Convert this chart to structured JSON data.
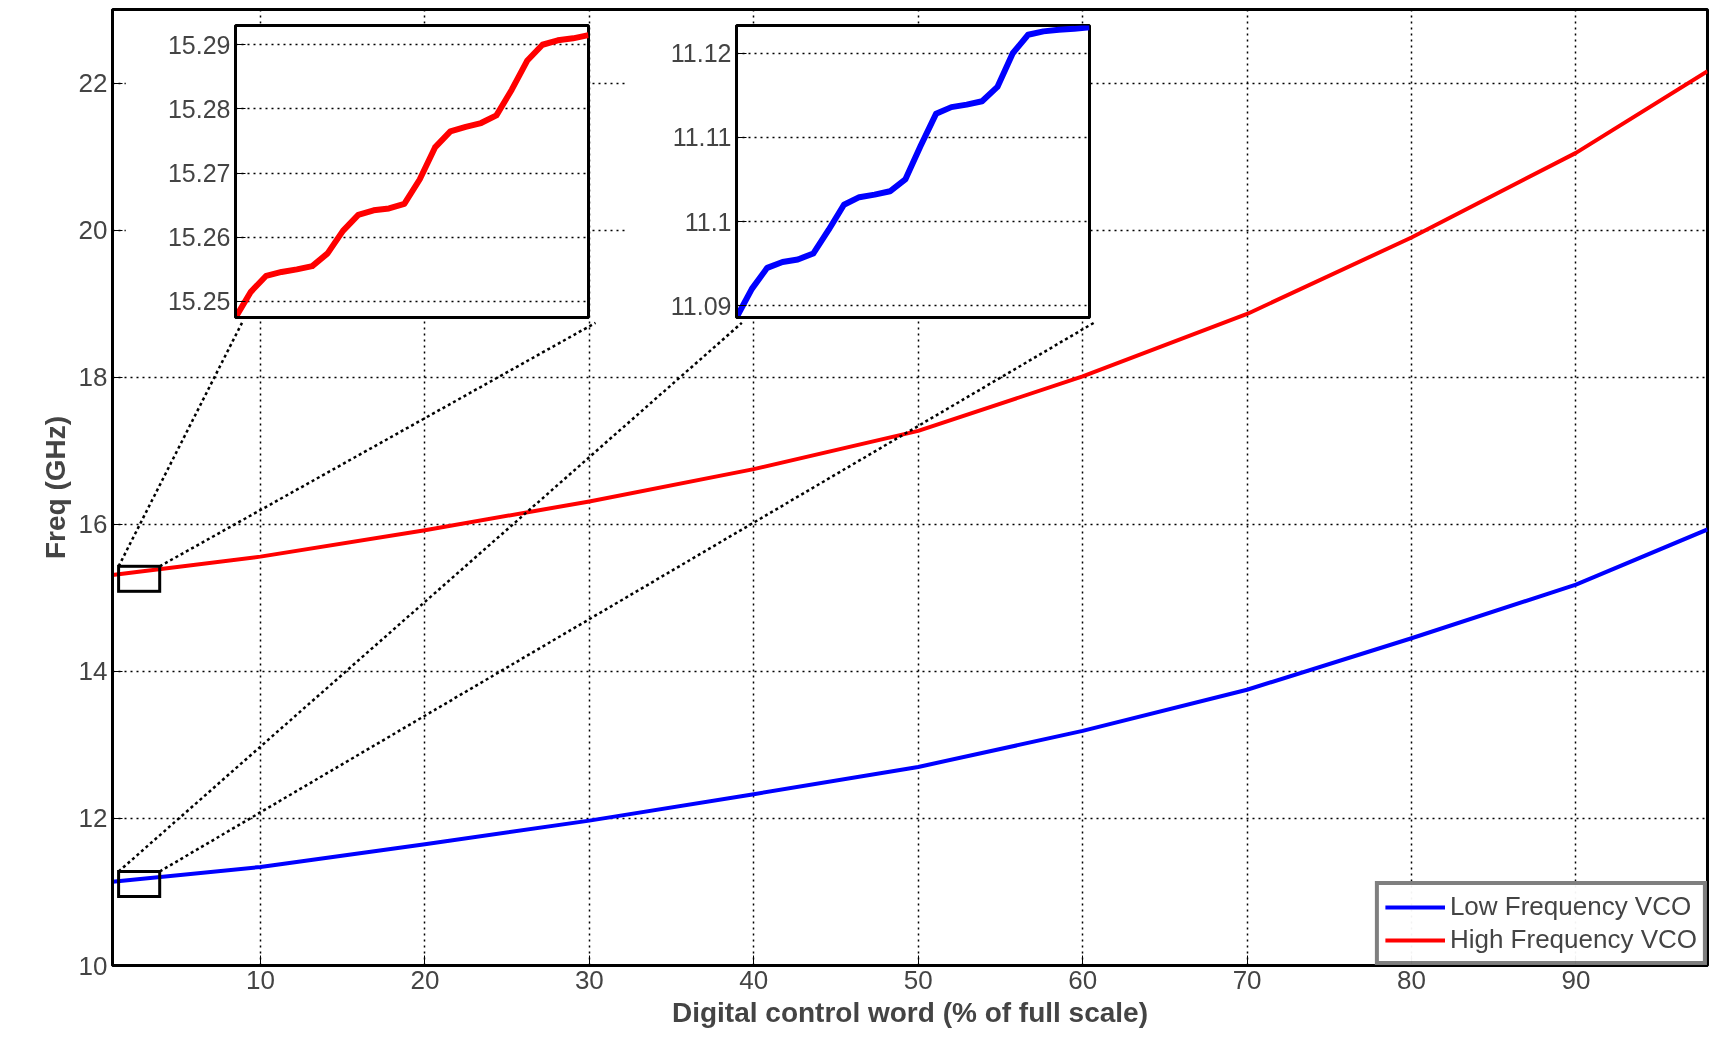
{
  "chart_data": [
    {
      "type": "line",
      "xlabel": "Digital control word (% of full scale)",
      "ylabel": "Freq (GHz)",
      "x": [
        1,
        10,
        20,
        30,
        40,
        50,
        60,
        70,
        80,
        90,
        98
      ],
      "xlim": [
        1,
        98
      ],
      "ylim": [
        10,
        23
      ],
      "xticks": [
        10,
        20,
        30,
        40,
        50,
        60,
        70,
        80,
        90
      ],
      "yticks": [
        10,
        12,
        14,
        16,
        18,
        20,
        22
      ],
      "grid": true,
      "legend": "bottom right",
      "series": [
        {
          "name": "Low Frequency VCO",
          "color": "#0000ff",
          "values": [
            11.14,
            11.34,
            11.65,
            11.97,
            12.33,
            12.7,
            13.19,
            13.75,
            14.45,
            15.18,
            15.93
          ]
        },
        {
          "name": "High Frequency VCO",
          "color": "#ff0000",
          "values": [
            15.31,
            15.56,
            15.92,
            16.31,
            16.75,
            17.27,
            18.01,
            18.86,
            19.9,
            21.05,
            22.16
          ]
        }
      ]
    },
    {
      "type": "line",
      "categories": [
        null,
        null,
        null,
        null,
        null,
        null,
        null,
        null,
        null,
        null,
        null,
        null,
        null,
        null,
        null,
        null,
        null,
        null,
        null,
        null,
        null,
        null,
        null,
        null
      ],
      "ylim": [
        15.2475,
        15.293
      ],
      "yticks": [
        15.25,
        15.26,
        15.27,
        15.28,
        15.29
      ],
      "grid": "y",
      "tick_labels": "y",
      "series": [
        {
          "color": "#ff0000",
          "values": [
            15.2475,
            15.2515,
            15.254,
            15.2546,
            15.255,
            15.2555,
            15.2575,
            15.261,
            15.2635,
            15.2642,
            15.2645,
            15.2652,
            15.269,
            15.274,
            15.2765,
            15.2772,
            15.2778,
            15.279,
            15.283,
            15.2875,
            15.29,
            15.2907,
            15.291,
            15.2915
          ]
        }
      ]
    },
    {
      "type": "line",
      "categories": [
        null,
        null,
        null,
        null,
        null,
        null,
        null,
        null,
        null,
        null,
        null,
        null,
        null,
        null,
        null,
        null,
        null,
        null,
        null,
        null,
        null,
        null,
        null,
        null
      ],
      "ylim": [
        11.0886,
        11.1233
      ],
      "yticks": [
        {
          "value": 11.09,
          "label": "11.09"
        },
        {
          "value": 11.1,
          "label": "11.1"
        },
        {
          "value": 11.11,
          "label": "11.11"
        },
        {
          "value": 11.12,
          "label": "11.12"
        }
      ],
      "grid": "y",
      "tick_labels": "y",
      "series": [
        {
          "color": "#0000ff",
          "values": [
            11.0886,
            11.092,
            11.0945,
            11.0952,
            11.0955,
            11.0962,
            11.099,
            11.102,
            11.1029,
            11.1032,
            11.1036,
            11.105,
            11.109,
            11.1128,
            11.1136,
            11.1139,
            11.1143,
            11.116,
            11.12,
            11.1222,
            11.1226,
            11.1228,
            11.1229,
            11.1231
          ]
        }
      ]
    }
  ]
}
